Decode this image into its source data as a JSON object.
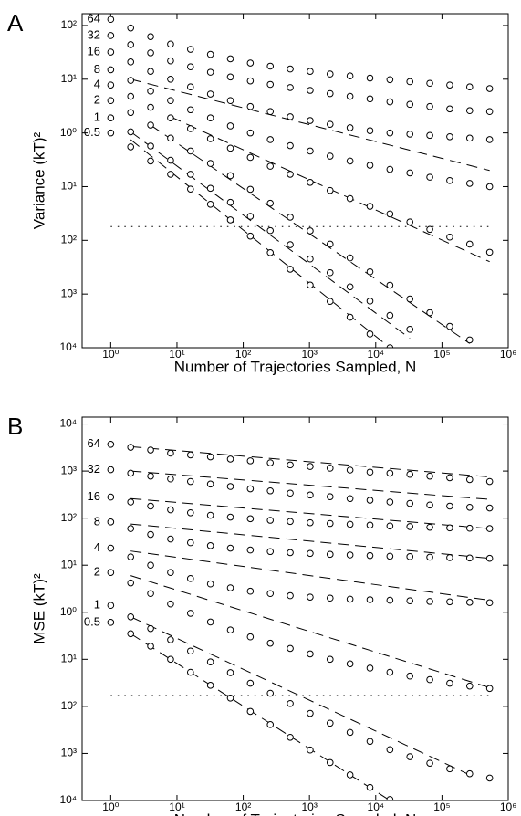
{
  "chart_data": [
    {
      "type": "scatter",
      "panel": "A",
      "xlabel": "Number of Trajectories Sampled, N",
      "ylabel": "Variance (kT)²",
      "xlog": true,
      "ylog": true,
      "color": "#000000",
      "xlim": [
        0.37,
        1000000
      ],
      "ylim": [
        0.0001,
        166
      ],
      "xticks": [
        {
          "value": 1,
          "label": "10⁰"
        },
        {
          "value": 10,
          "label": "10¹"
        },
        {
          "value": 100,
          "label": "10²"
        },
        {
          "value": 1000,
          "label": "10³"
        },
        {
          "value": 10000,
          "label": "10⁴"
        },
        {
          "value": 100000,
          "label": "10⁵"
        },
        {
          "value": 1000000,
          "label": "10⁶"
        }
      ],
      "yticks": [
        {
          "value": 0.0001,
          "label": "10⁴"
        },
        {
          "value": 0.001,
          "label": "10³"
        },
        {
          "value": 0.01,
          "label": "10²"
        },
        {
          "value": 0.1,
          "label": "10¹"
        },
        {
          "value": 1,
          "label": "10⁰"
        },
        {
          "value": 10,
          "label": "10¹"
        },
        {
          "value": 100,
          "label": "10²"
        }
      ],
      "x": [
        1,
        2,
        4,
        8,
        16,
        32,
        64,
        128,
        256,
        512,
        1024,
        2048,
        4096,
        8192,
        16384,
        32768,
        65536,
        131072,
        262144,
        524288
      ],
      "series": [
        {
          "name": "64",
          "values": [
            130,
            90,
            62,
            45,
            36,
            29,
            24,
            20,
            17.5,
            15.5,
            14,
            12.5,
            11.5,
            10.5,
            9.8,
            9,
            8.4,
            7.8,
            7.2,
            6.7
          ]
        },
        {
          "name": "32",
          "values": [
            65,
            44,
            31,
            22,
            17,
            13.5,
            11,
            9.3,
            8,
            7,
            6.2,
            5.4,
            4.8,
            4.3,
            3.8,
            3.4,
            3.1,
            2.8,
            2.6,
            2.5
          ]
        },
        {
          "name": "16",
          "values": [
            32,
            21,
            14,
            10,
            7.2,
            5.3,
            4,
            3.1,
            2.5,
            2,
            1.7,
            1.45,
            1.25,
            1.1,
            1,
            0.95,
            0.9,
            0.85,
            0.8,
            0.75
          ]
        },
        {
          "name": "8",
          "values": [
            15,
            9.5,
            6,
            4,
            2.7,
            1.9,
            1.35,
            1,
            0.75,
            0.58,
            0.46,
            0.37,
            0.3,
            0.25,
            0.21,
            0.18,
            0.15,
            0.13,
            0.115,
            0.1
          ],
          "fit": {
            "x": [
              2,
              524288
            ],
            "values": [
              10,
              0.2
            ]
          }
        },
        {
          "name": "4",
          "values": [
            7.8,
            4.8,
            3,
            1.9,
            1.2,
            0.78,
            0.52,
            0.35,
            0.24,
            0.17,
            0.12,
            0.085,
            0.06,
            0.043,
            0.031,
            0.022,
            0.016,
            0.0115,
            0.0085,
            0.006
          ],
          "fit": {
            "x": [
              8,
              524288
            ],
            "values": [
              2.0,
              0.004
            ]
          }
        },
        {
          "name": "2",
          "values": [
            4,
            2.4,
            1.4,
            0.8,
            0.46,
            0.27,
            0.16,
            0.089,
            0.049,
            0.027,
            0.015,
            0.0085,
            0.0047,
            0.0026,
            0.00146,
            0.00081,
            0.00045,
            0.00025,
            0.00014,
            null
          ],
          "fit": {
            "x": [
              4,
              262144
            ],
            "values": [
              1.4,
              0.00012
            ]
          }
        },
        {
          "name": "1",
          "values": [
            1.9,
            1.05,
            0.57,
            0.31,
            0.17,
            0.093,
            0.051,
            0.028,
            0.0152,
            0.0083,
            0.0045,
            0.0025,
            0.00136,
            0.00074,
            0.0004,
            0.00022,
            null,
            null,
            null,
            null
          ],
          "fit": {
            "x": [
              2,
              32768
            ],
            "values": [
              1.05,
              0.00015
            ]
          }
        },
        {
          "name": "0.5",
          "values": [
            1.0,
            0.55,
            0.3,
            0.17,
            0.09,
            0.047,
            0.024,
            0.012,
            0.0059,
            0.0029,
            0.00147,
            0.00073,
            0.00037,
            0.00018,
            0.0001,
            null,
            null,
            null,
            null,
            null
          ],
          "fit": {
            "x": [
              2,
              16384
            ],
            "values": [
              0.75,
              0.0001
            ]
          }
        }
      ],
      "reference": {
        "x": [
          1,
          524288
        ],
        "values": [
          0.018,
          0.018
        ]
      }
    },
    {
      "type": "scatter",
      "panel": "B",
      "xlabel": "Number of Trajectories Sampled, N",
      "ylabel": "MSE (kT)²",
      "xlog": true,
      "ylog": true,
      "color": "#000000",
      "xlim": [
        0.37,
        1000000
      ],
      "ylim": [
        0.0001,
        14000
      ],
      "xticks": [
        {
          "value": 1,
          "label": "10⁰"
        },
        {
          "value": 10,
          "label": "10¹"
        },
        {
          "value": 100,
          "label": "10²"
        },
        {
          "value": 1000,
          "label": "10³"
        },
        {
          "value": 10000,
          "label": "10⁴"
        },
        {
          "value": 100000,
          "label": "10⁵"
        },
        {
          "value": 1000000,
          "label": "10⁶"
        }
      ],
      "yticks": [
        {
          "value": 0.0001,
          "label": "10⁴"
        },
        {
          "value": 0.001,
          "label": "10³"
        },
        {
          "value": 0.01,
          "label": "10²"
        },
        {
          "value": 0.1,
          "label": "10¹"
        },
        {
          "value": 1,
          "label": "10⁰"
        },
        {
          "value": 10,
          "label": "10¹"
        },
        {
          "value": 100,
          "label": "10²"
        },
        {
          "value": 1000,
          "label": "10³"
        },
        {
          "value": 10000,
          "label": "10⁴"
        }
      ],
      "x": [
        1,
        2,
        4,
        8,
        16,
        32,
        64,
        128,
        256,
        512,
        1024,
        2048,
        4096,
        8192,
        16384,
        32768,
        65536,
        131072,
        262144,
        524288
      ],
      "series": [
        {
          "name": "64",
          "values": [
            3700,
            3200,
            2800,
            2400,
            2200,
            2000,
            1800,
            1650,
            1500,
            1350,
            1250,
            1150,
            1050,
            950,
            900,
            850,
            780,
            720,
            660,
            600
          ],
          "fit": {
            "x": [
              2,
              524288
            ],
            "values": [
              3300,
              750
            ]
          }
        },
        {
          "name": "32",
          "values": [
            1070,
            900,
            780,
            680,
            600,
            530,
            470,
            420,
            380,
            340,
            310,
            285,
            260,
            240,
            220,
            205,
            190,
            180,
            170,
            164
          ],
          "fit": {
            "x": [
              2,
              524288
            ],
            "values": [
              1000,
              250
            ]
          }
        },
        {
          "name": "16",
          "values": [
            280,
            220,
            180,
            150,
            130,
            115,
            105,
            97,
            90,
            85,
            80,
            77,
            74,
            71,
            68,
            66,
            64,
            62,
            61,
            60
          ],
          "fit": {
            "x": [
              2,
              524288
            ],
            "values": [
              260,
              60
            ]
          }
        },
        {
          "name": "8",
          "values": [
            83,
            60,
            45,
            36,
            30,
            26,
            23,
            21,
            19.5,
            18.5,
            17.8,
            17,
            16.5,
            16,
            15.5,
            15.2,
            14.8,
            14.5,
            14.2,
            14
          ],
          "fit": {
            "x": [
              2,
              524288
            ],
            "values": [
              75,
              14
            ]
          }
        },
        {
          "name": "4",
          "values": [
            23,
            15,
            10,
            7,
            5.2,
            4,
            3.3,
            2.8,
            2.5,
            2.25,
            2.1,
            2,
            1.9,
            1.85,
            1.8,
            1.75,
            1.7,
            1.67,
            1.63,
            1.6
          ],
          "fit": {
            "x": [
              2,
              524288
            ],
            "values": [
              20,
              1.8
            ]
          }
        },
        {
          "name": "2",
          "values": [
            7,
            4.2,
            2.5,
            1.5,
            0.95,
            0.62,
            0.42,
            0.3,
            0.22,
            0.17,
            0.13,
            0.1,
            0.08,
            0.065,
            0.053,
            0.044,
            0.037,
            0.031,
            0.027,
            0.024
          ],
          "fit": {
            "x": [
              2,
              524288
            ],
            "values": [
              6,
              0.025
            ]
          }
        },
        {
          "name": "1",
          "values": [
            1.4,
            0.8,
            0.45,
            0.26,
            0.15,
            0.088,
            0.052,
            0.031,
            0.019,
            0.0115,
            0.0071,
            0.0044,
            0.0028,
            0.0018,
            0.0012,
            0.00085,
            0.00062,
            0.00047,
            0.00037,
            0.0003
          ],
          "fit": {
            "x": [
              2,
              262144
            ],
            "values": [
              0.8,
              0.00035
            ]
          }
        },
        {
          "name": "0.5",
          "values": [
            0.61,
            0.35,
            0.19,
            0.1,
            0.053,
            0.028,
            0.015,
            0.0078,
            0.0041,
            0.0022,
            0.00118,
            0.00064,
            0.00035,
            0.00019,
            0.000105,
            null,
            null,
            null,
            null,
            null
          ],
          "fit": {
            "x": [
              2,
              16384
            ],
            "values": [
              0.35,
              0.0001
            ]
          }
        }
      ],
      "reference": {
        "x": [
          1,
          524288
        ],
        "values": [
          0.017,
          0.017
        ]
      }
    }
  ]
}
